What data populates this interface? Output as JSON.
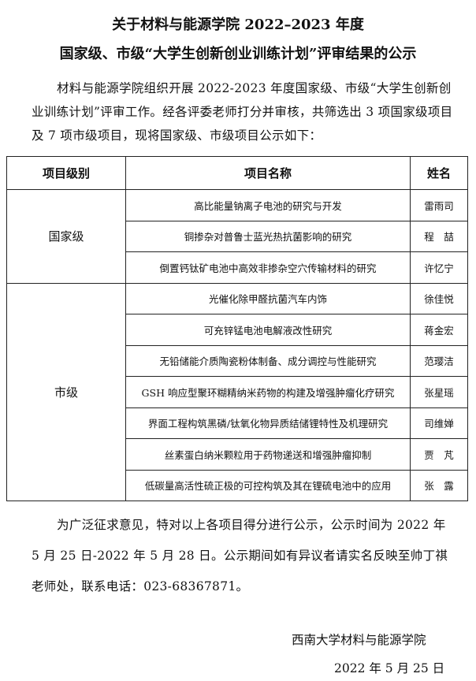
{
  "title": {
    "line1": "关于材料与能源学院 2022–2023 年度",
    "line2": "国家级、市级“大学生创新创业训练计划”评审结果的公示"
  },
  "intro": "材料与能源学院组织开展 2022-2023 年度国家级、市级“大学生创新创业训练计划”评审工作。经各评委老师打分并审核，共筛选出 3 项国家级项目及 7 项市级项目，现将国家级、市级项目公示如下：",
  "table": {
    "headers": [
      "项目级别",
      "项目名称",
      "姓名"
    ],
    "groups": [
      {
        "level": "国家级",
        "rows": [
          {
            "name": "高比能量钠离子电池的研究与开发",
            "person": "雷雨司"
          },
          {
            "name": "铜掺杂对普鲁士蓝光热抗菌影响的研究",
            "person": "程　喆"
          },
          {
            "name": "倒置钙钛矿电池中高效非掺杂空穴传输材料的研究",
            "person": "许忆宁"
          }
        ]
      },
      {
        "level": "市级",
        "rows": [
          {
            "name": "光催化除甲醛抗菌汽车内饰",
            "person": "徐佳悦"
          },
          {
            "name": "可充锌锰电池电解液改性研究",
            "person": "蒋金宏"
          },
          {
            "name": "无铅储能介质陶瓷粉体制备、成分调控与性能研究",
            "person": "范璎洁"
          },
          {
            "name": "GSH 响应型聚环糊精纳米药物的构建及增强肿瘤化疗研究",
            "person": "张星瑶"
          },
          {
            "name": "界面工程构筑黑磷/钛氧化物异质结储锂特性及机理研究",
            "person": "司维婵"
          },
          {
            "name": "丝素蛋白纳米颗粒用于药物递送和增强肿瘤抑制",
            "person": "贾　芃"
          },
          {
            "name": "低碳量高活性硫正极的可控构筑及其在锂硫电池中的应用",
            "person": "张　露"
          }
        ]
      }
    ]
  },
  "closing": "为广泛征求意见，特对以上各项目得分进行公示，公示时间为 2022 年 5 月 25 日-2022 年 5 月 28 日。公示期间如有异议者请实名反映至帅丁祺老师处，联系电话：023-68367871。",
  "signature": {
    "org": "西南大学材料与能源学院",
    "date": "2022 年 5 月 25 日"
  }
}
